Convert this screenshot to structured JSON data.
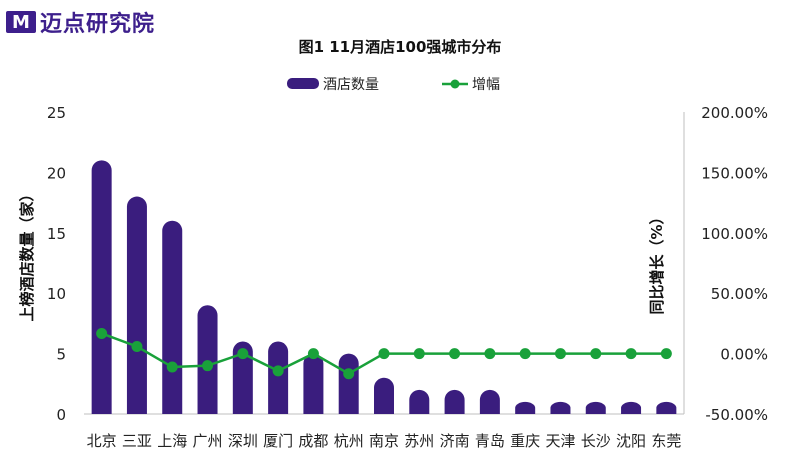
{
  "logo": {
    "mark": "M",
    "text": "迈点研究院",
    "mark_color": "#3d1f8c",
    "text_color": "#3d1f8c"
  },
  "chart_data": {
    "type": "bar+line",
    "title": "图1 11月酒店100强城市分布",
    "categories": [
      "北京",
      "三亚",
      "上海",
      "广州",
      "深圳",
      "厦门",
      "成都",
      "杭州",
      "南京",
      "苏州",
      "济南",
      "青岛",
      "重庆",
      "天津",
      "长沙",
      "沈阳",
      "东莞"
    ],
    "series": [
      {
        "name": "酒店数量",
        "type": "bar",
        "axis": "left",
        "color": "#3a1d7e",
        "values": [
          21,
          18,
          16,
          9,
          6,
          6,
          5,
          5,
          3,
          2,
          2,
          2,
          1,
          1,
          1,
          1,
          1
        ]
      },
      {
        "name": "增幅",
        "type": "line",
        "axis": "right",
        "color": "#19a13a",
        "values": [
          16.67,
          5.88,
          -11.11,
          -10.0,
          0.0,
          -14.29,
          0.0,
          -16.67,
          0.0,
          0.0,
          0.0,
          0.0,
          0.0,
          0.0,
          0.0,
          0.0,
          0.0
        ]
      }
    ],
    "y_left": {
      "label": "上榜酒店数量（家）",
      "min": 0,
      "max": 25,
      "ticks": [
        "0",
        "5",
        "10",
        "15",
        "20",
        "25"
      ]
    },
    "y_right": {
      "label": "同比增长（%）",
      "min": -50,
      "max": 200,
      "ticks": [
        "-50.00%",
        "0.00%",
        "50.00%",
        "100.00%",
        "150.00%",
        "200.00%"
      ]
    },
    "legend": {
      "position": "top-center"
    }
  }
}
